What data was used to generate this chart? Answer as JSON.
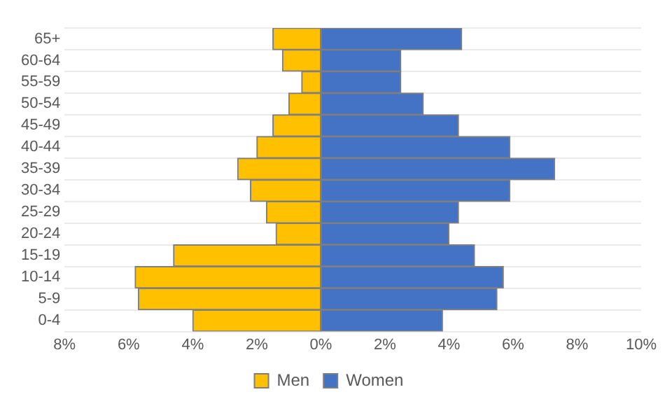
{
  "chart_data": {
    "type": "bar",
    "orientation": "horizontal",
    "stacked": true,
    "categories": [
      "65+",
      "60-64",
      "55-59",
      "50-54",
      "45-49",
      "40-44",
      "35-39",
      "30-34",
      "25-29",
      "20-24",
      "15-19",
      "10-14",
      "5-9",
      "0-4"
    ],
    "series": [
      {
        "name": "Men",
        "color": "#ffc000",
        "values": [
          -1.5,
          -1.2,
          -0.6,
          -1.0,
          -1.5,
          -2.0,
          -2.6,
          -2.2,
          -1.7,
          -1.4,
          -4.6,
          -5.8,
          -5.7,
          -4.0
        ]
      },
      {
        "name": "Women",
        "color": "#4472c4",
        "values": [
          4.4,
          2.5,
          2.5,
          3.2,
          4.3,
          5.9,
          7.3,
          5.9,
          4.3,
          4.0,
          4.8,
          5.7,
          5.5,
          3.8
        ]
      }
    ],
    "xlim": [
      -8,
      10
    ],
    "xticks": [
      {
        "value": -8,
        "label": "8%"
      },
      {
        "value": -6,
        "label": "6%"
      },
      {
        "value": -4,
        "label": "4%"
      },
      {
        "value": -2,
        "label": "2%"
      },
      {
        "value": 0,
        "label": "0%"
      },
      {
        "value": 2,
        "label": "2%"
      },
      {
        "value": 4,
        "label": "4%"
      },
      {
        "value": 6,
        "label": "6%"
      },
      {
        "value": 8,
        "label": "8%"
      },
      {
        "value": 10,
        "label": "10%"
      }
    ],
    "grid": "y",
    "legend": "bottom"
  }
}
